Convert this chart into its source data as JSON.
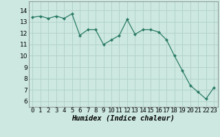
{
  "x": [
    0,
    1,
    2,
    3,
    4,
    5,
    6,
    7,
    8,
    9,
    10,
    11,
    12,
    13,
    14,
    15,
    16,
    17,
    18,
    19,
    20,
    21,
    22,
    23
  ],
  "y": [
    13.4,
    13.5,
    13.3,
    13.5,
    13.3,
    13.7,
    11.8,
    12.3,
    12.3,
    11.0,
    11.4,
    11.8,
    13.2,
    11.9,
    12.3,
    12.3,
    12.1,
    11.4,
    10.0,
    8.7,
    7.4,
    6.8,
    6.2,
    7.2
  ],
  "line_color": "#2a7a65",
  "marker": "D",
  "marker_size": 2.2,
  "background_color": "#cce8e0",
  "grid_color": "#b0cfc8",
  "xlabel": "Humidex (Indice chaleur)",
  "ylim": [
    5.5,
    14.8
  ],
  "yticks": [
    6,
    7,
    8,
    9,
    10,
    11,
    12,
    13,
    14
  ],
  "xtick_labels": [
    "0",
    "1",
    "2",
    "3",
    "4",
    "5",
    "6",
    "7",
    "8",
    "9",
    "10",
    "11",
    "12",
    "13",
    "14",
    "15",
    "16",
    "17",
    "18",
    "19",
    "20",
    "21",
    "22",
    "23"
  ],
  "tick_fontsize": 6.5,
  "xlabel_fontsize": 7.5
}
